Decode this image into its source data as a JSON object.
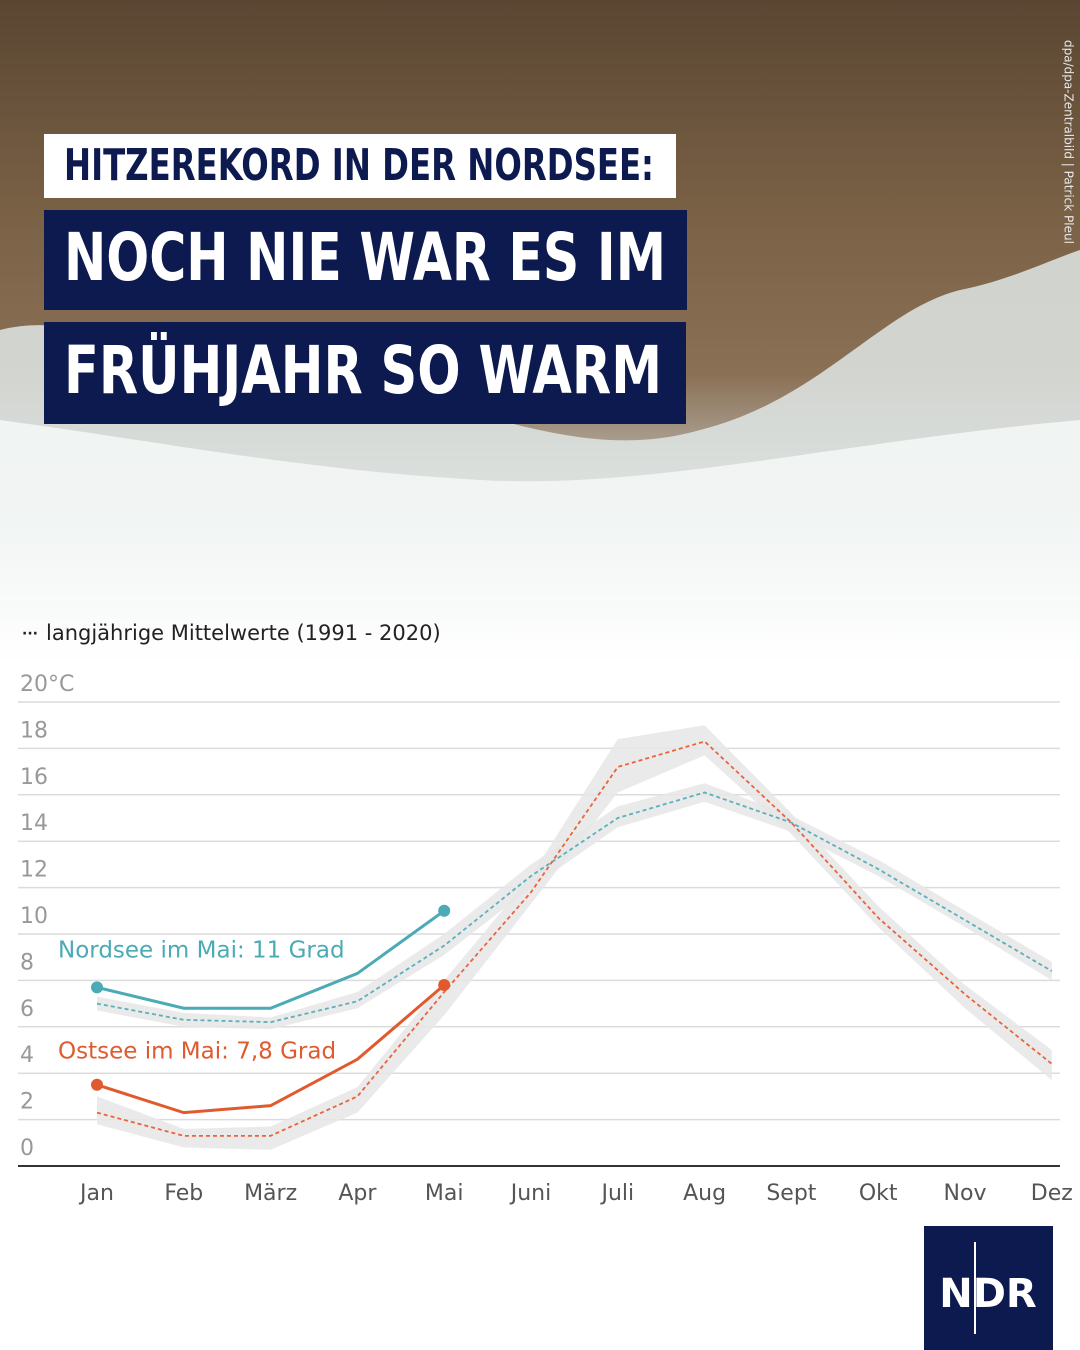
{
  "header": {
    "kicker": "HITZEREKORD IN DER NORDSEE:",
    "lines": [
      "NOCH NIE WAR ES IM",
      "FRÜHJAHR SO WARM"
    ],
    "credit": "dpa/dpa-Zentralbild | Patrick Pleul"
  },
  "logo": "NDR",
  "chart_data": {
    "type": "line",
    "legend": "langjährige Mittelwerte (1991 - 2020)",
    "categories": [
      "Jan",
      "Feb",
      "März",
      "Apr",
      "Mai",
      "Juni",
      "Juli",
      "Aug",
      "Sept",
      "Okt",
      "Nov",
      "Dez"
    ],
    "ylim": [
      0,
      20
    ],
    "yticks": [
      0,
      2,
      4,
      6,
      8,
      10,
      12,
      14,
      16,
      18,
      {
        "value": 20,
        "label": "20°C"
      }
    ],
    "grid": true,
    "series": [
      {
        "color": "#5ab0bb",
        "style": "dashed",
        "values": [
          7.0,
          6.3,
          6.2,
          7.1,
          9.5,
          12.5,
          15.0,
          16.1,
          14.8,
          12.8,
          10.6,
          8.4
        ],
        "low": [
          6.7,
          6.0,
          5.9,
          6.8,
          9.1,
          12.0,
          14.6,
          15.7,
          14.4,
          12.5,
          10.3,
          8.0
        ],
        "high": [
          7.3,
          6.6,
          6.4,
          7.5,
          10.0,
          13.0,
          15.5,
          16.5,
          15.1,
          13.2,
          11.0,
          8.8
        ]
      },
      {
        "color": "#e8643c",
        "style": "dashed",
        "values": [
          2.3,
          1.3,
          1.3,
          3.0,
          7.5,
          11.8,
          17.2,
          18.3,
          14.8,
          10.7,
          7.4,
          4.4
        ],
        "low": [
          1.8,
          0.8,
          0.7,
          2.3,
          6.5,
          11.3,
          16.1,
          17.7,
          14.3,
          10.3,
          6.8,
          3.7
        ],
        "high": [
          3.0,
          1.6,
          1.7,
          3.4,
          8.0,
          12.5,
          18.4,
          19.0,
          15.2,
          11.2,
          7.8,
          5.0
        ]
      },
      {
        "color": "#4aaab5",
        "style": "solid",
        "values": [
          7.7,
          6.8,
          6.8,
          8.3,
          11.0,
          null,
          null,
          null,
          null,
          null,
          null,
          null
        ]
      },
      {
        "color": "#e05a2e",
        "style": "solid",
        "values": [
          3.5,
          2.3,
          2.6,
          4.6,
          7.8,
          null,
          null,
          null,
          null,
          null,
          null,
          null
        ]
      }
    ],
    "annotations": [
      {
        "text": "Nordsee im Mai: 11 Grad",
        "color": "#4aaab5"
      },
      {
        "text": "Ostsee im Mai: 7,8 Grad",
        "color": "#e05a2e"
      }
    ]
  }
}
